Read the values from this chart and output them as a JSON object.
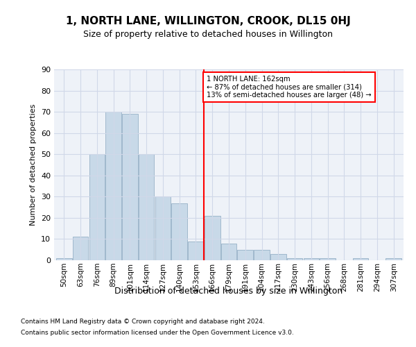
{
  "title": "1, NORTH LANE, WILLINGTON, CROOK, DL15 0HJ",
  "subtitle": "Size of property relative to detached houses in Willington",
  "xlabel": "Distribution of detached houses by size in Willington",
  "ylabel": "Number of detached properties",
  "categories": [
    "50sqm",
    "63sqm",
    "76sqm",
    "89sqm",
    "101sqm",
    "114sqm",
    "127sqm",
    "140sqm",
    "153sqm",
    "166sqm",
    "179sqm",
    "191sqm",
    "204sqm",
    "217sqm",
    "230sqm",
    "243sqm",
    "256sqm",
    "268sqm",
    "281sqm",
    "294sqm",
    "307sqm"
  ],
  "values": [
    1,
    11,
    50,
    70,
    69,
    50,
    30,
    27,
    9,
    21,
    8,
    5,
    5,
    3,
    1,
    1,
    1,
    0,
    1,
    0,
    1
  ],
  "bar_color": "#c8d9e8",
  "bar_edge_color": "#a0b8cc",
  "vline_pos": 8.5,
  "annotation_lines": [
    "1 NORTH LANE: 162sqm",
    "← 87% of detached houses are smaller (314)",
    "13% of semi-detached houses are larger (48) →"
  ],
  "ylim": [
    0,
    90
  ],
  "yticks": [
    0,
    10,
    20,
    30,
    40,
    50,
    60,
    70,
    80,
    90
  ],
  "grid_color": "#d0d8e8",
  "bg_color": "#eef2f8",
  "footer1": "Contains HM Land Registry data © Crown copyright and database right 2024.",
  "footer2": "Contains public sector information licensed under the Open Government Licence v3.0."
}
